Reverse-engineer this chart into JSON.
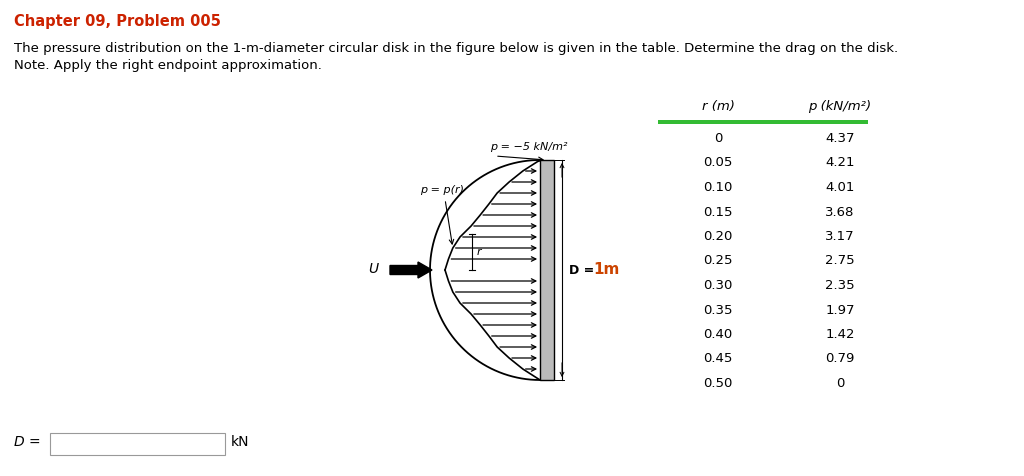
{
  "title": "Chapter 09, Problem 005",
  "title_color": "#cc2200",
  "body_line1": "The pressure distribution on the 1-m-diameter circular disk in the figure below is given in the table. Determine the drag on the disk.",
  "body_line2": "Note. Apply the right endpoint approximation.",
  "table_header_r": "r (m)",
  "table_header_p": "p (kN/m²)",
  "table_r_str": [
    "0",
    "0.05",
    "0.10",
    "0.15",
    "0.20",
    "0.25",
    "0.30",
    "0.35",
    "0.40",
    "0.45",
    "0.50"
  ],
  "table_p_str": [
    "4.37",
    "4.21",
    "4.01",
    "3.68",
    "3.17",
    "2.75",
    "2.35",
    "1.97",
    "1.42",
    "0.79",
    "0"
  ],
  "table_r": [
    0,
    0.05,
    0.1,
    0.15,
    0.2,
    0.25,
    0.3,
    0.35,
    0.4,
    0.45,
    0.5
  ],
  "table_p": [
    4.37,
    4.21,
    4.01,
    3.68,
    3.17,
    2.75,
    2.35,
    1.97,
    1.42,
    0.79,
    0
  ],
  "table_header_bar_color": "#33bb33",
  "answer_label": "D =",
  "answer_unit": "kN",
  "background_color": "#ffffff",
  "text_color": "#000000",
  "fig_label_p_eq": "p = p(r)",
  "fig_label_p_val": "p = −5 kN/m²",
  "fig_label_D": "D = 1m",
  "fig_label_U": "U"
}
